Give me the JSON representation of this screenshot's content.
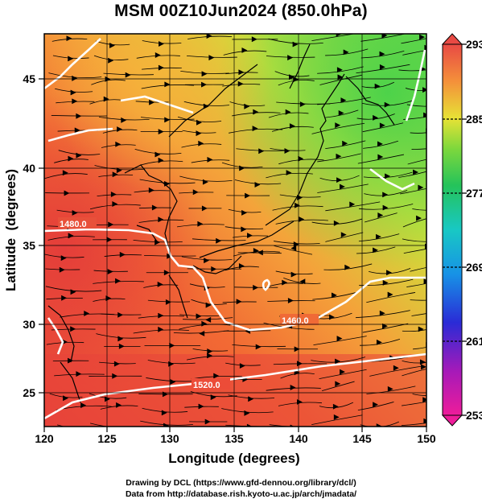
{
  "title": "MSM 00Z10Jun2024 (850.0hPa)",
  "x_axis": {
    "label": "Longitude (degrees)",
    "ticks": [
      "120",
      "125",
      "130",
      "135",
      "140",
      "145",
      "150"
    ]
  },
  "y_axis": {
    "label": "Latitude  (degrees)",
    "ticks": [
      "25",
      "30",
      "35",
      "40",
      "45"
    ]
  },
  "colorbar": {
    "ticks": [
      "293",
      "285",
      "277",
      "269",
      "261",
      "253"
    ],
    "colors": [
      "#ee1c7a",
      "#b01ab6",
      "#2a2bd6",
      "#1792e6",
      "#19c3c9",
      "#25c36a",
      "#44d24a",
      "#9fe03a",
      "#e7e236",
      "#f4a23a",
      "#f25a33",
      "#e64a4a"
    ]
  },
  "contour_labels": [
    "1480.0",
    "1460.0",
    "1520.0"
  ],
  "credits": [
    "Drawing by DCL (https://www.gfd-dennou.org/library/dcl/)",
    "Data from http://database.rish.kyoto-u.ac.jp/arch/jmadata/"
  ]
}
